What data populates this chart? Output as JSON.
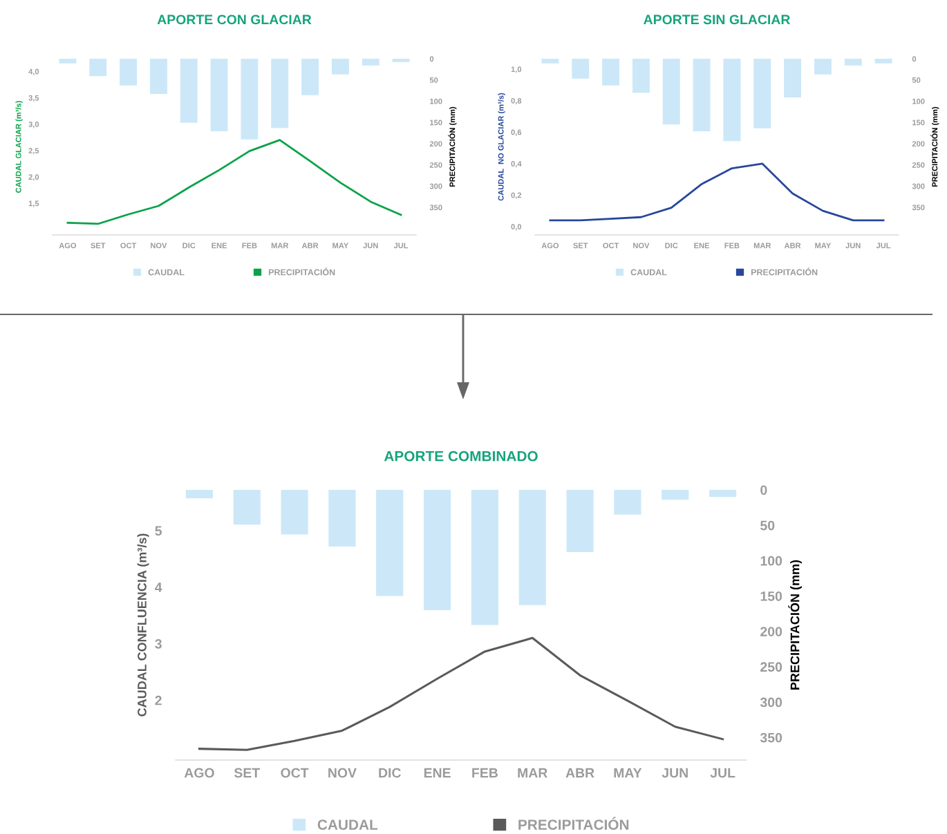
{
  "chart_data": [
    {
      "type": "bar",
      "title": "APORTE CON GLACIAR",
      "ylabel": "CAUDAL GLACIAR (m³/s)",
      "y2label": "PRECIPITACIÓN (mm)",
      "categories": [
        "AGO",
        "SET",
        "OCT",
        "NOV",
        "DIC",
        "ENE",
        "FEB",
        "MAR",
        "ABR",
        "MAY",
        "JUN",
        "JUL"
      ],
      "series": [
        {
          "name": "CAUDAL",
          "axis": "y2",
          "color": "#cce8f8",
          "values": [
            11,
            41,
            63,
            83,
            151,
            171,
            190,
            163,
            86,
            37,
            16,
            8
          ]
        },
        {
          "name": "PRECIPITACIÓN",
          "type": "line",
          "axis": "y",
          "color": "#0aa24a",
          "values": [
            1.13,
            1.11,
            1.29,
            1.45,
            1.8,
            2.13,
            2.49,
            2.7,
            2.3,
            1.89,
            1.53,
            1.28
          ]
        }
      ],
      "ylim": [
        0.9,
        4.24
      ],
      "yticks": [
        {
          "value": 1.5,
          "label": "1,5"
        },
        {
          "value": 2.0,
          "label": "2,0"
        },
        {
          "value": 2.5,
          "label": "2,5"
        },
        {
          "value": 3.0,
          "label": "3,0"
        },
        {
          "value": 3.5,
          "label": "3,5"
        },
        {
          "value": 4.0,
          "label": "4,0"
        }
      ],
      "y2lim": [
        415,
        0
      ],
      "y2ticks": [
        0,
        50,
        100,
        150,
        200,
        250,
        300,
        350
      ],
      "legend": "bottom",
      "grid": false
    },
    {
      "type": "bar",
      "title": "APORTE SIN GLACIAR",
      "ylabel": "CAUDAL  NO GLACIAR (m³/s)",
      "y2label": "PRECIPITACIÓN (mm)",
      "categories": [
        "AGO",
        "SET",
        "OCT",
        "NOV",
        "DIC",
        "ENE",
        "FEB",
        "MAR",
        "ABR",
        "MAY",
        "JUN",
        "JUL"
      ],
      "series": [
        {
          "name": "CAUDAL",
          "axis": "y2",
          "color": "#cce8f8",
          "values": [
            11,
            47,
            63,
            80,
            155,
            171,
            194,
            164,
            91,
            37,
            16,
            11
          ]
        },
        {
          "name": "PRECIPITACIÓN",
          "type": "line",
          "axis": "y",
          "color": "#26479a",
          "values": [
            0.04,
            0.04,
            0.05,
            0.06,
            0.12,
            0.27,
            0.37,
            0.4,
            0.21,
            0.1,
            0.04,
            0.04
          ]
        }
      ],
      "ylim": [
        -0.053,
        1.066
      ],
      "yticks": [
        {
          "value": 0.0,
          "label": "0,0"
        },
        {
          "value": 0.2,
          "label": "0,2"
        },
        {
          "value": 0.4,
          "label": "0,4"
        },
        {
          "value": 0.6,
          "label": "0,6"
        },
        {
          "value": 0.8,
          "label": "0,8"
        },
        {
          "value": 1.0,
          "label": "1,0"
        }
      ],
      "y2lim": [
        415,
        0
      ],
      "y2ticks": [
        0,
        50,
        100,
        150,
        200,
        250,
        300,
        350
      ],
      "legend": "bottom",
      "grid": false
    },
    {
      "type": "bar",
      "title": "APORTE COMBINADO",
      "ylabel": "CAUDAL CONFLUENCIA (m³/s)",
      "y2label": "PRECIPITACIÓN (mm)",
      "categories": [
        "AGO",
        "SET",
        "OCT",
        "NOV",
        "DIC",
        "ENE",
        "FEB",
        "MAR",
        "ABR",
        "MAY",
        "JUN",
        "JUL"
      ],
      "series": [
        {
          "name": "CAUDAL",
          "axis": "y2",
          "color": "#cce8f8",
          "values": [
            12,
            49,
            63,
            80,
            150,
            170,
            191,
            163,
            88,
            35,
            14,
            10
          ]
        },
        {
          "name": "PRECIPITACIÓN",
          "type": "line",
          "axis": "y",
          "color": "#5a5a5a",
          "values": [
            1.14,
            1.12,
            1.28,
            1.46,
            1.88,
            2.38,
            2.86,
            3.1,
            2.44,
            1.99,
            1.53,
            1.31
          ]
        }
      ],
      "ylim": [
        0.94,
        5.72
      ],
      "yticks": [
        2,
        3,
        4,
        5
      ],
      "y2lim": [
        382,
        0
      ],
      "y2ticks": [
        0,
        50,
        100,
        150,
        200,
        250,
        300,
        350
      ],
      "legend": "bottom",
      "grid": false
    }
  ]
}
